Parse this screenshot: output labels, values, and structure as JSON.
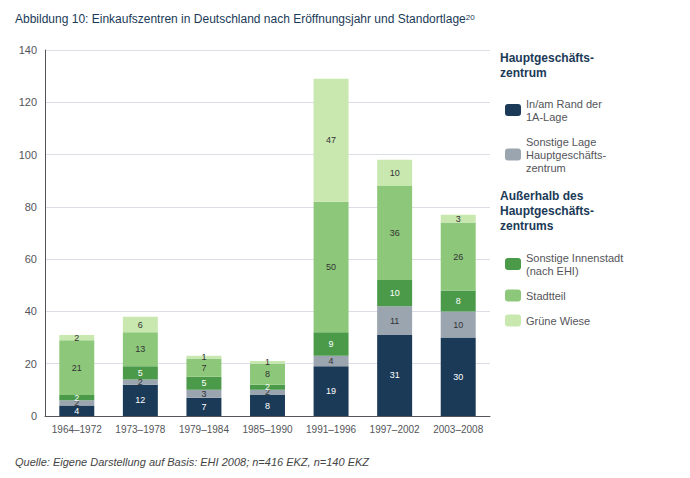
{
  "chart_data": {
    "type": "bar",
    "title": "Abbildung 10: Einkaufszentren in Deutschland nach Eröffnungsjahr und Standortlage",
    "title_superscript": "20",
    "source": "Quelle: Eigene Darstellung auf Basis: EHI 2008; n=416 EKZ, n=140 EKZ",
    "categories": [
      "1964–1972",
      "1973–1978",
      "1979–1984",
      "1985–1990",
      "1991–1996",
      "1997–2002",
      "2003–2008"
    ],
    "series": [
      {
        "name": "In/am Rand der\n1A-Lage",
        "color": "#1b3a57",
        "values": [
          4,
          12,
          7,
          8,
          19,
          31,
          30
        ]
      },
      {
        "name": "Sonstige Lage\nHauptgeschäfts-\nzentrum",
        "color": "#9aa5b0",
        "values": [
          2,
          2,
          3,
          2,
          4,
          11,
          10
        ]
      },
      {
        "name": "Sonstige Innenstadt\n(nach EHI)",
        "color": "#4a9a4a",
        "values": [
          2,
          5,
          5,
          2,
          9,
          10,
          8
        ]
      },
      {
        "name": "Stadtteil",
        "color": "#8dc87a",
        "values": [
          21,
          13,
          7,
          8,
          50,
          36,
          26
        ]
      },
      {
        "name": "Grüne Wiese",
        "color": "#c8e8b0",
        "values": [
          2,
          6,
          1,
          1,
          47,
          10,
          3
        ]
      }
    ],
    "legend_groups": [
      {
        "title": "Hauptgeschäfts-\nzentrum",
        "series": [
          "In/am Rand der\n1A-Lage",
          "Sonstige Lage\nHauptgeschäfts-\nzentrum"
        ]
      },
      {
        "title": "Außerhalb des\nHauptgeschäfts-\nzentrums",
        "series": [
          "Sonstige Innenstadt\n(nach EHI)",
          "Stadtteil",
          "Grüne Wiese"
        ]
      }
    ],
    "stacked": true,
    "data_labels": true,
    "ylim": [
      0,
      140
    ],
    "yticks": [
      0,
      20,
      40,
      60,
      80,
      100,
      120,
      140
    ],
    "grid": true,
    "legend": "right"
  }
}
